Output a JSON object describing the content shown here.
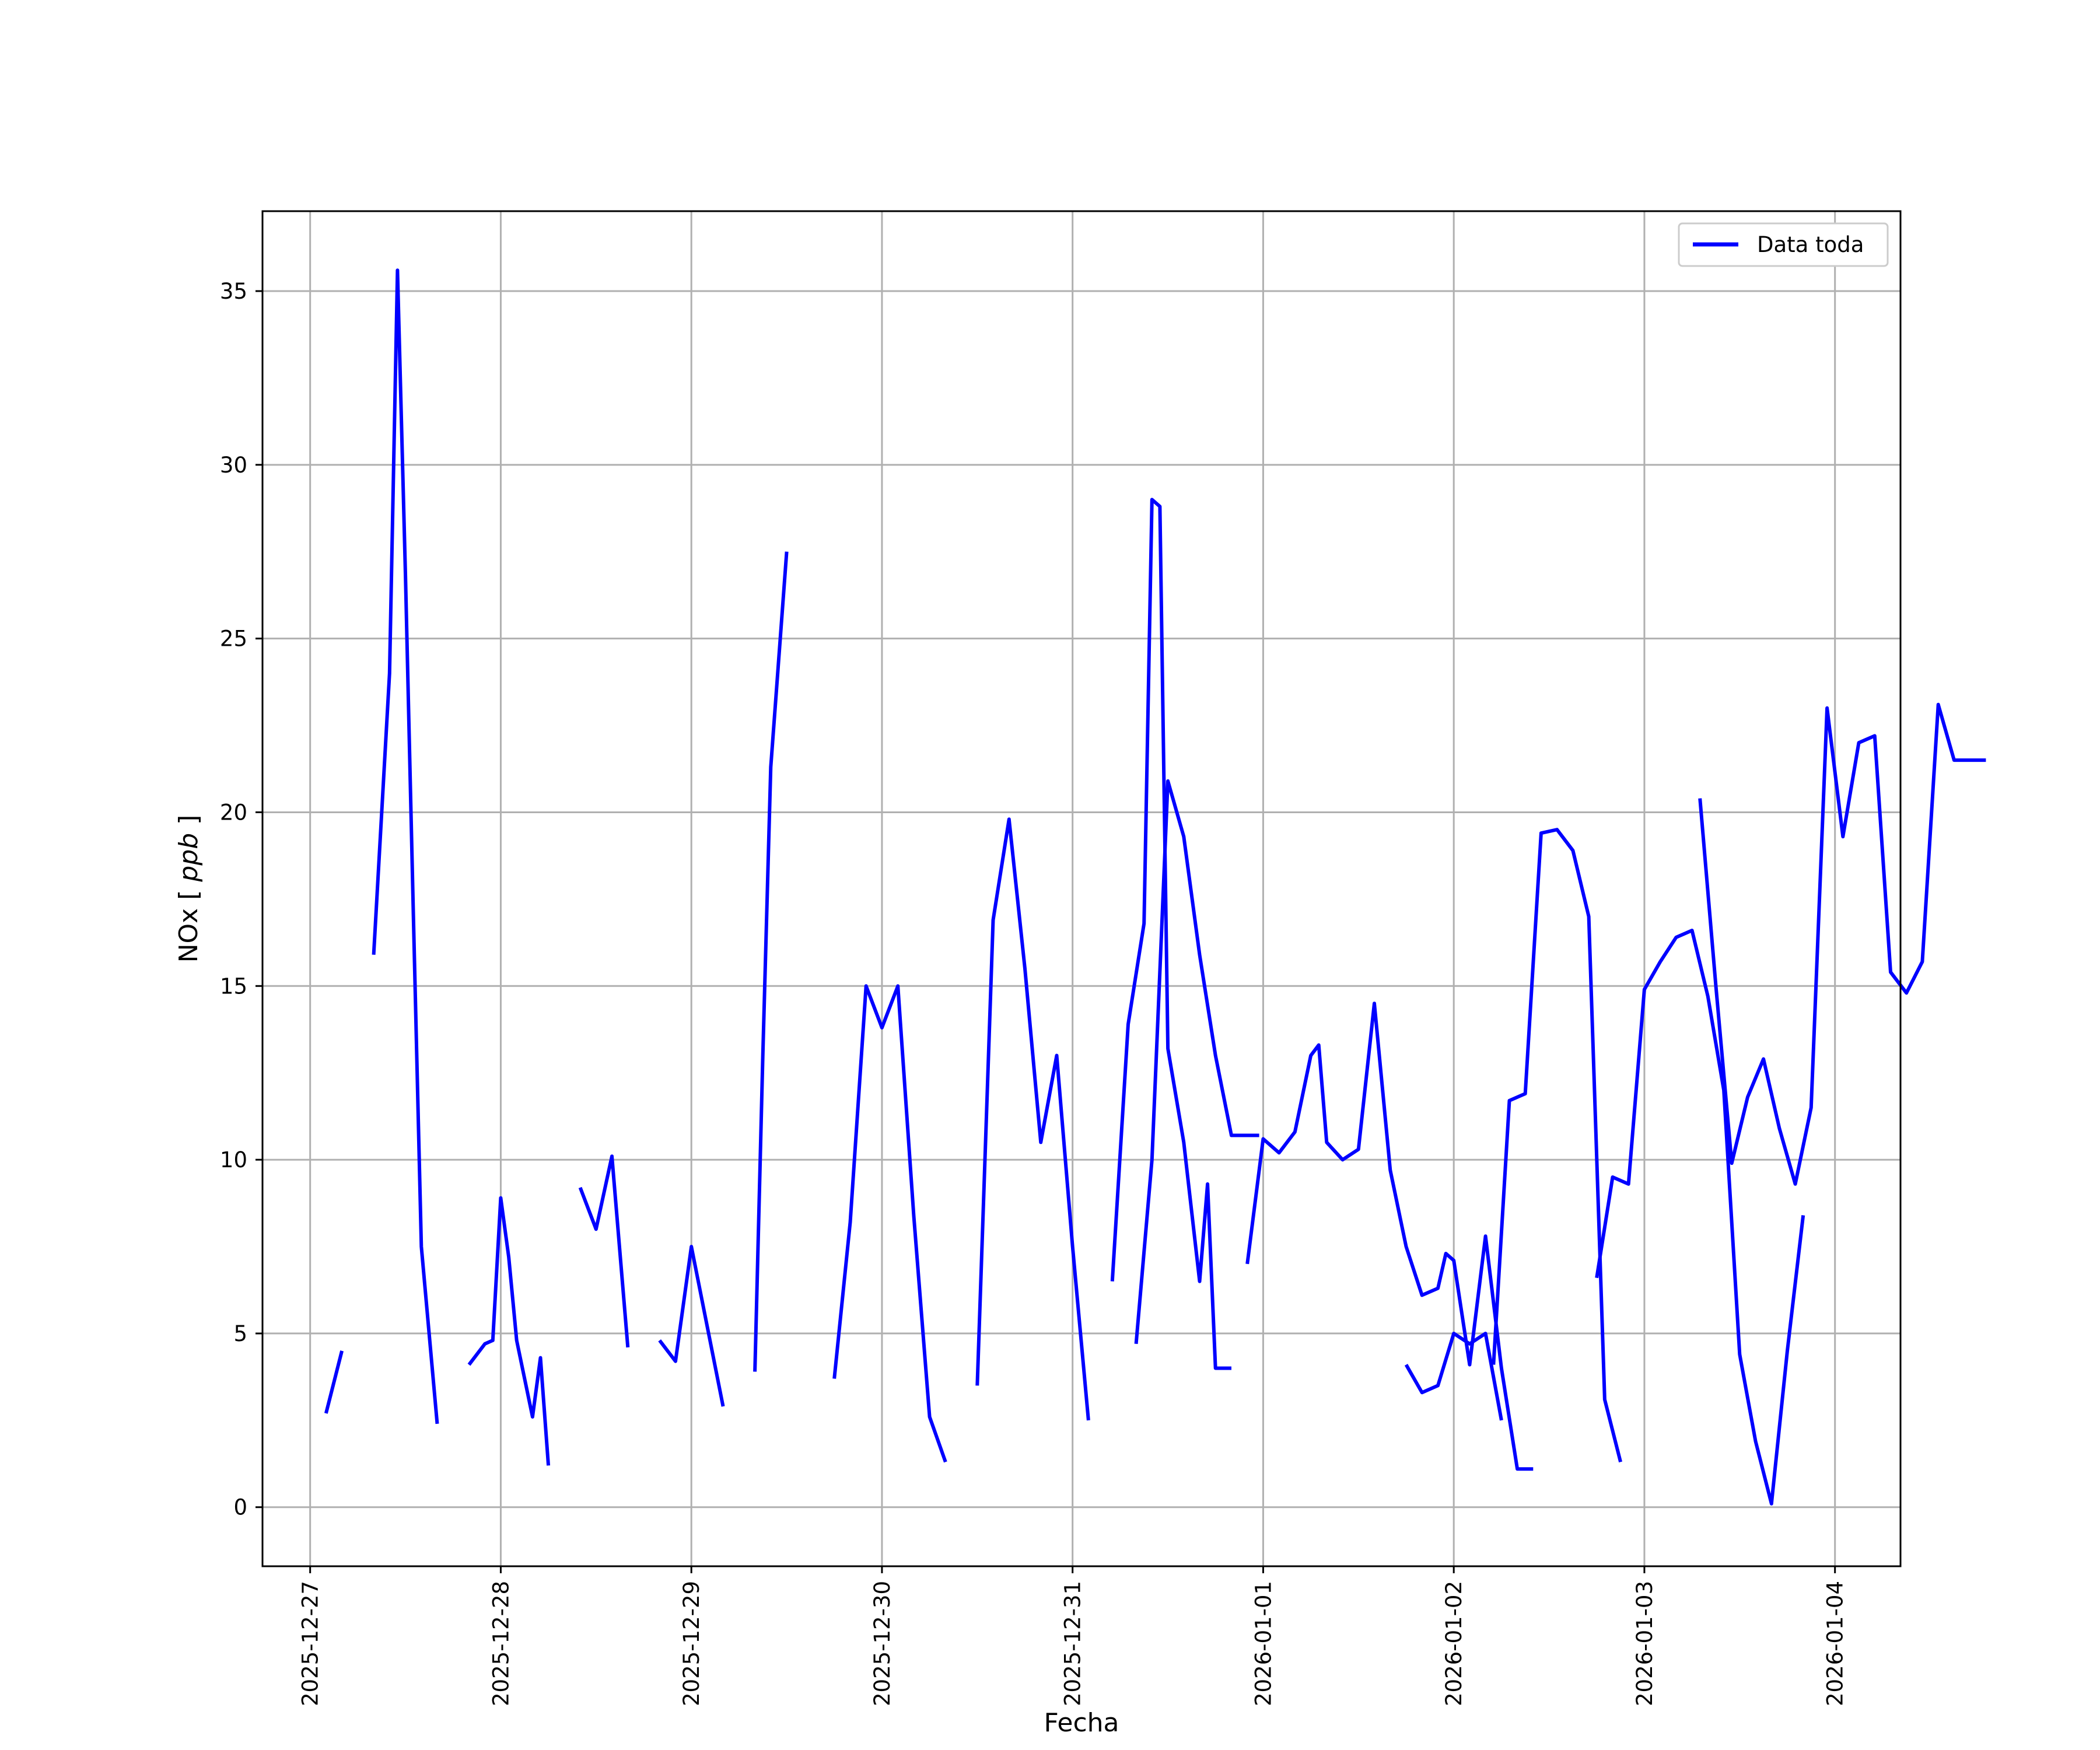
{
  "chart_data": {
    "type": "line",
    "xlabel": "Fecha",
    "ylabel": "NOx",
    "ylabel_unit": "ppb",
    "ylim": [
      -1.7,
      37.3
    ],
    "xlim": [
      "2025-12-26T18:00",
      "2026-01-04T08:15"
    ],
    "x_ticks": [
      "2025-12-27",
      "2025-12-28",
      "2025-12-29",
      "2025-12-30",
      "2025-12-31",
      "2026-01-01",
      "2026-01-02",
      "2026-01-03",
      "2026-01-04"
    ],
    "y_ticks": [
      0,
      5,
      10,
      15,
      20,
      25,
      30,
      35
    ],
    "grid": true,
    "legend_position": "top-right",
    "colors": {
      "series": "#0000ff",
      "grid": "#b0b0b0",
      "axes": "#000000"
    },
    "series": [
      {
        "name": "Data toda",
        "segments": [
          {
            "x": [
              "2025-12-27T02:00",
              "2025-12-27T04:00"
            ],
            "y": [
              2.7,
              4.5
            ]
          },
          {
            "x": [
              "2025-12-27T08:00",
              "2025-12-27T10:00",
              "2025-12-27T11:00",
              "2025-12-27T12:00",
              "2025-12-27T13:00",
              "2025-12-27T14:00",
              "2025-12-27T16:00"
            ],
            "y": [
              15.9,
              24.0,
              35.6,
              26.8,
              17.0,
              7.5,
              2.4
            ]
          },
          {
            "x": [
              "2025-12-27T20:00",
              "2025-12-27T22:00",
              "2025-12-27T23:00",
              "2025-12-28T00:00",
              "2025-12-28T01:00",
              "2025-12-28T02:00",
              "2025-12-28T04:00",
              "2025-12-28T05:00",
              "2025-12-28T06:00"
            ],
            "y": [
              4.1,
              4.7,
              4.8,
              8.9,
              7.2,
              4.8,
              2.6,
              4.3,
              1.2
            ]
          },
          {
            "x": [
              "2025-12-28T10:00",
              "2025-12-28T12:00",
              "2025-12-28T14:00",
              "2025-12-28T16:00"
            ],
            "y": [
              9.2,
              8.0,
              10.1,
              4.6
            ]
          },
          {
            "x": [
              "2025-12-28T20:00",
              "2025-12-28T22:00",
              "2025-12-29T00:00",
              "2025-12-29T02:00",
              "2025-12-29T04:00"
            ],
            "y": [
              4.8,
              4.2,
              7.5,
              5.2,
              2.9
            ]
          },
          {
            "x": [
              "2025-12-29T08:00",
              "2025-12-29T09:00",
              "2025-12-29T10:00",
              "2025-12-29T12:00"
            ],
            "y": [
              3.9,
              13.0,
              21.3,
              27.5
            ]
          },
          {
            "x": [
              "2025-12-29T18:00",
              "2025-12-29T20:00",
              "2025-12-29T22:00",
              "2025-12-30T00:00",
              "2025-12-30T02:00",
              "2025-12-30T04:00",
              "2025-12-30T06:00",
              "2025-12-30T08:00"
            ],
            "y": [
              3.7,
              8.2,
              15.0,
              13.8,
              15.0,
              8.4,
              2.6,
              1.3
            ]
          },
          {
            "x": [
              "2025-12-30T12:00",
              "2025-12-30T14:00",
              "2025-12-30T16:00",
              "2025-12-30T18:00",
              "2025-12-30T20:00",
              "2025-12-30T22:00",
              "2025-12-31T00:00",
              "2025-12-31T02:00"
            ],
            "y": [
              3.5,
              16.9,
              19.8,
              15.5,
              10.5,
              13.0,
              7.5,
              2.5
            ]
          },
          {
            "x": [
              "2025-12-31T08:00",
              "2025-12-31T10:00",
              "2025-12-31T12:00",
              "2025-12-31T14:00",
              "2025-12-31T16:00",
              "2025-12-31T18:00",
              "2025-12-31T20:00",
              "2025-12-31T23:30"
            ],
            "y": [
              4.7,
              10.0,
              20.9,
              19.3,
              15.9,
              13.0,
              10.7,
              10.7
            ]
          },
          {
            "x": [
              "2025-12-31T05:00",
              "2025-12-31T07:00",
              "2025-12-31T09:00",
              "2025-12-31T10:00",
              "2025-12-31T11:00",
              "2025-12-31T12:00",
              "2025-12-31T14:00",
              "2025-12-31T16:00",
              "2025-12-31T17:00",
              "2025-12-31T18:00",
              "2025-12-31T20:00"
            ],
            "y": [
              6.5,
              13.9,
              16.8,
              29.0,
              28.8,
              13.2,
              10.5,
              6.5,
              9.3,
              4.0,
              4.0
            ]
          },
          {
            "x": [
              "2025-12-31T22:00",
              "2026-01-01T00:00",
              "2026-01-01T02:00",
              "2026-01-01T04:00",
              "2026-01-01T06:00",
              "2026-01-01T07:00",
              "2026-01-01T08:00",
              "2026-01-01T10:00",
              "2026-01-01T12:00",
              "2026-01-01T14:00",
              "2026-01-01T16:00",
              "2026-01-01T18:00",
              "2026-01-01T20:00",
              "2026-01-01T22:00",
              "2026-01-01T23:00",
              "2026-01-02T00:00",
              "2026-01-02T02:00",
              "2026-01-02T04:00",
              "2026-01-02T06:00",
              "2026-01-02T08:00",
              "2026-01-02T10:00"
            ],
            "y": [
              7.0,
              10.6,
              10.2,
              10.8,
              13.0,
              13.3,
              10.5,
              10.0,
              10.3,
              14.5,
              9.7,
              7.5,
              6.1,
              6.3,
              7.3,
              7.1,
              4.1,
              7.8,
              4.0,
              1.1,
              1.1
            ]
          },
          {
            "x": [
              "2026-01-01T18:00",
              "2026-01-01T20:00",
              "2026-01-01T22:00",
              "2026-01-02T00:00",
              "2026-01-02T02:00",
              "2026-01-02T04:00",
              "2026-01-02T06:00"
            ],
            "y": [
              4.1,
              3.3,
              3.5,
              5.0,
              4.7,
              5.0,
              2.5
            ]
          },
          {
            "x": [
              "2026-01-02T05:00",
              "2026-01-02T07:00",
              "2026-01-02T09:00",
              "2026-01-02T11:00",
              "2026-01-02T13:00",
              "2026-01-02T15:00",
              "2026-01-02T17:00",
              "2026-01-02T19:00",
              "2026-01-02T21:00"
            ],
            "y": [
              4.1,
              11.7,
              11.9,
              19.4,
              19.5,
              18.9,
              17.0,
              3.1,
              1.3
            ]
          },
          {
            "x": [
              "2026-01-02T18:00",
              "2026-01-02T20:00",
              "2026-01-02T22:00",
              "2026-01-03T00:00",
              "2026-01-03T02:00",
              "2026-01-03T04:00",
              "2026-01-03T06:00",
              "2026-01-03T08:00",
              "2026-01-03T10:00",
              "2026-01-03T12:00",
              "2026-01-03T14:00",
              "2026-01-03T16:00",
              "2026-01-03T18:00",
              "2026-01-03T20:00"
            ],
            "y": [
              6.6,
              9.5,
              9.3,
              14.9,
              15.7,
              16.4,
              16.6,
              14.7,
              12.0,
              4.4,
              1.9,
              0.1,
              4.5,
              8.4
            ]
          },
          {
            "x": [
              "2026-01-03T07:00",
              "2026-01-03T09:00",
              "2026-01-03T11:00",
              "2026-01-03T13:00",
              "2026-01-03T15:00",
              "2026-01-03T17:00",
              "2026-01-03T19:00",
              "2026-01-03T21:00",
              "2026-01-03T23:00",
              "2026-01-04T01:00",
              "2026-01-04T03:00",
              "2026-01-04T05:00",
              "2026-01-04T07:00",
              "2026-01-04T09:00",
              "2026-01-04T11:00",
              "2026-01-04T13:00",
              "2026-01-04T15:00",
              "2026-01-04T17:00",
              "2026-01-04T19:00"
            ],
            "y": [
              20.4,
              15.0,
              9.9,
              11.8,
              12.9,
              10.9,
              9.3,
              11.5,
              23.0,
              19.3,
              22.0,
              22.2,
              15.4,
              14.8,
              15.7,
              23.1,
              21.5,
              21.5,
              21.5
            ]
          }
        ]
      }
    ]
  }
}
